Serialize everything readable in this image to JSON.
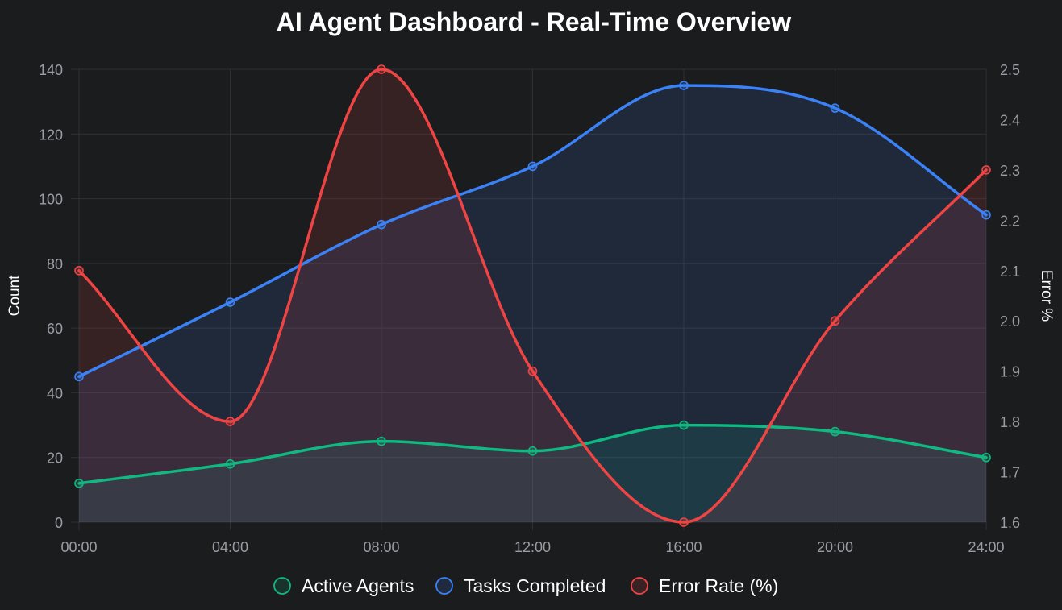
{
  "colors": {
    "background": "#1b1c1e",
    "grid": "#2f3136",
    "tick_text": "#9a9da3",
    "title_text": "#ffffff",
    "active_agents": "#10b981",
    "tasks_completed": "#3b82f6",
    "error_rate": "#ef4444"
  },
  "chart_data": {
    "type": "line",
    "title": "AI Agent Dashboard - Real-Time Overview",
    "x": [
      "00:00",
      "04:00",
      "08:00",
      "12:00",
      "16:00",
      "20:00",
      "24:00"
    ],
    "ylabel": "Count",
    "ylabel_right": "Error %",
    "ylim": [
      0,
      140
    ],
    "yticks": [
      0,
      20,
      40,
      60,
      80,
      100,
      120,
      140
    ],
    "ylim_right": [
      1.6,
      2.5
    ],
    "yticks_right": [
      "1.6",
      "1.7",
      "1.8",
      "1.9",
      "2.0",
      "2.1",
      "2.2",
      "2.3",
      "2.4",
      "2.5"
    ],
    "grid": true,
    "smooth": true,
    "filled": true,
    "legend_position": "bottom",
    "series": [
      {
        "name": "Active Agents",
        "axis": "left",
        "color": "#10b981",
        "values": [
          12,
          18,
          25,
          22,
          30,
          28,
          20
        ]
      },
      {
        "name": "Tasks Completed",
        "axis": "left",
        "color": "#3b82f6",
        "values": [
          45,
          68,
          92,
          110,
          135,
          128,
          95
        ]
      },
      {
        "name": "Error Rate (%)",
        "axis": "right",
        "color": "#ef4444",
        "values": [
          2.1,
          1.8,
          2.5,
          1.9,
          1.6,
          2.0,
          2.3
        ]
      }
    ]
  }
}
